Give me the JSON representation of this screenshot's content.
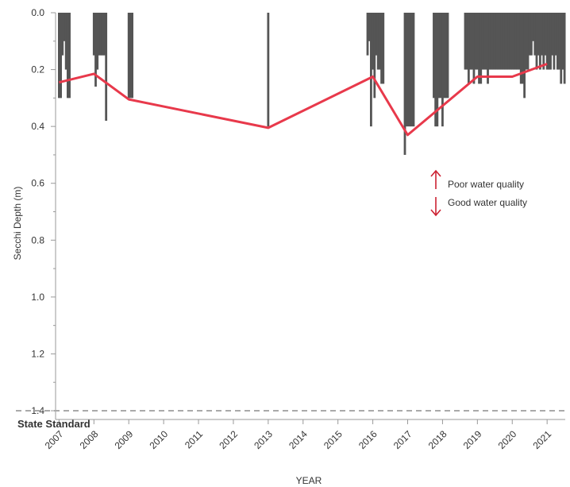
{
  "chart_data": {
    "type": "bar",
    "ylabel": "Secchi Depth (m)",
    "xlabel": "YEAR",
    "y_axis_inverted": true,
    "ylim": [
      0.0,
      1.4
    ],
    "yticks": [
      "0.0",
      "0.2",
      "0.4",
      "0.6",
      "0.8",
      "1.0",
      "1.2",
      "1.4"
    ],
    "xlim": [
      2006.9,
      2021.52
    ],
    "xticks": [
      "2007",
      "2008",
      "2009",
      "2010",
      "2011",
      "2012",
      "2013",
      "2014",
      "2015",
      "2016",
      "2017",
      "2018",
      "2019",
      "2020",
      "2021"
    ],
    "colors": {
      "bars": "#555555",
      "line": "#e8394b",
      "standard": "#aaaaaa",
      "arrow": "#cc2233",
      "axis": "#999999"
    },
    "series": [
      {
        "type": "bar",
        "x": [
          2007.0,
          2007.05,
          2007.1,
          2007.15,
          2007.2,
          2007.25,
          2007.3,
          2008.0,
          2008.05,
          2008.1,
          2008.15,
          2008.2,
          2008.25,
          2008.3,
          2008.35,
          2009.0,
          2009.05,
          2009.1,
          2013.0,
          2015.85,
          2015.9,
          2015.95,
          2016.0,
          2016.05,
          2016.1,
          2016.15,
          2016.2,
          2016.25,
          2016.3,
          2016.92,
          2016.97,
          2017.02,
          2017.07,
          2017.12,
          2017.17,
          2017.75,
          2017.8,
          2017.85,
          2017.9,
          2017.95,
          2018.0,
          2018.05,
          2018.1,
          2018.15,
          2018.65,
          2018.7,
          2018.75,
          2018.8,
          2018.85,
          2018.9,
          2018.95,
          2019.0,
          2019.05,
          2019.1,
          2019.15,
          2019.2,
          2019.25,
          2019.3,
          2019.35,
          2019.4,
          2019.45,
          2019.5,
          2019.55,
          2019.6,
          2019.65,
          2019.7,
          2019.75,
          2019.8,
          2019.85,
          2019.9,
          2019.95,
          2020.0,
          2020.05,
          2020.1,
          2020.15,
          2020.2,
          2020.25,
          2020.3,
          2020.35,
          2020.4,
          2020.45,
          2020.5,
          2020.55,
          2020.6,
          2020.65,
          2020.7,
          2020.75,
          2020.8,
          2020.85,
          2020.9,
          2020.95,
          2021.0,
          2021.05,
          2021.1,
          2021.15,
          2021.2,
          2021.25,
          2021.3,
          2021.35,
          2021.4,
          2021.45,
          2021.5
        ],
        "values": [
          0.3,
          0.3,
          0.15,
          0.1,
          0.2,
          0.3,
          0.3,
          0.15,
          0.26,
          0.2,
          0.15,
          0.15,
          0.15,
          0.15,
          0.38,
          0.3,
          0.3,
          0.3,
          0.4,
          0.15,
          0.1,
          0.4,
          0.2,
          0.3,
          0.15,
          0.2,
          0.2,
          0.25,
          0.25,
          0.5,
          0.4,
          0.4,
          0.4,
          0.4,
          0.4,
          0.3,
          0.4,
          0.4,
          0.3,
          0.3,
          0.4,
          0.3,
          0.3,
          0.3,
          0.2,
          0.2,
          0.25,
          0.2,
          0.2,
          0.25,
          0.2,
          0.2,
          0.25,
          0.25,
          0.2,
          0.2,
          0.2,
          0.25,
          0.2,
          0.2,
          0.2,
          0.2,
          0.2,
          0.2,
          0.2,
          0.2,
          0.2,
          0.2,
          0.2,
          0.2,
          0.2,
          0.2,
          0.2,
          0.2,
          0.2,
          0.2,
          0.25,
          0.25,
          0.3,
          0.2,
          0.2,
          0.15,
          0.15,
          0.1,
          0.15,
          0.2,
          0.15,
          0.2,
          0.15,
          0.2,
          0.15,
          0.2,
          0.2,
          0.2,
          0.15,
          0.2,
          0.15,
          0.2,
          0.2,
          0.25,
          0.2,
          0.25
        ]
      },
      {
        "type": "line",
        "x": [
          2007.0,
          2008.0,
          2009.0,
          2013.0,
          2016.0,
          2017.0,
          2019.0,
          2020.0,
          2021.0
        ],
        "values": [
          0.245,
          0.215,
          0.305,
          0.405,
          0.225,
          0.43,
          0.225,
          0.225,
          0.18
        ]
      }
    ],
    "reference_line": {
      "value": 1.4,
      "label": "State Standard",
      "style": "dashed"
    },
    "annotations": [
      {
        "text": "Poor water quality",
        "arrow": "up"
      },
      {
        "text": "Good water quality",
        "arrow": "down"
      }
    ]
  }
}
